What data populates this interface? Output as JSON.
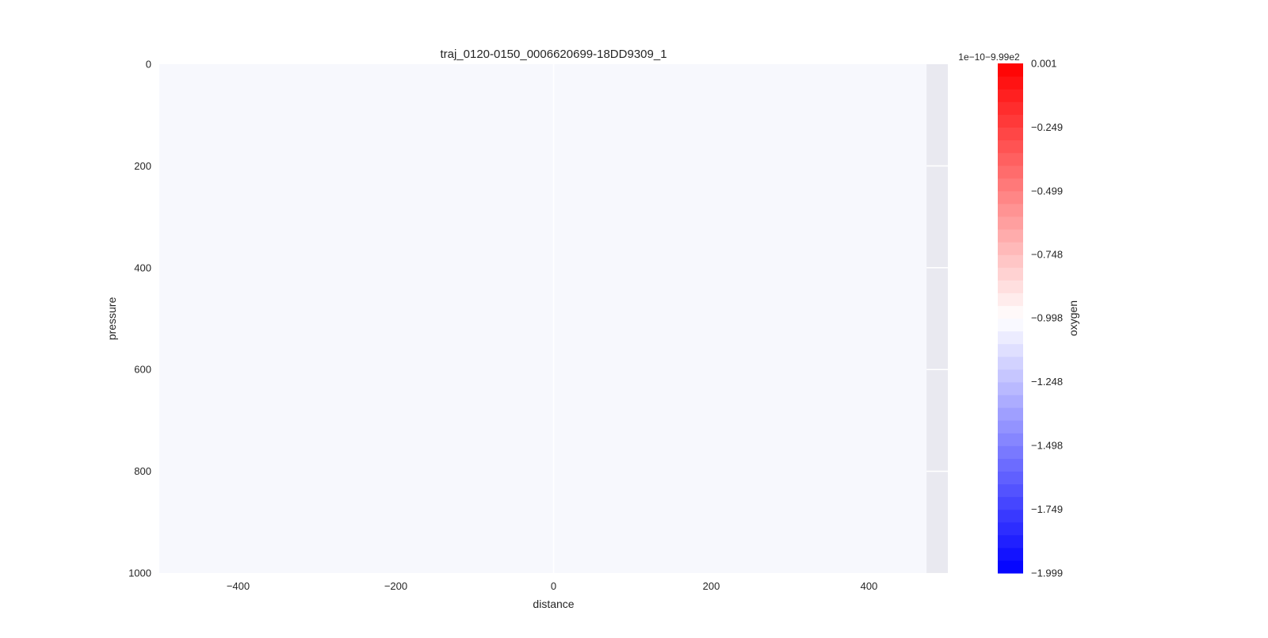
{
  "chart_data": {
    "type": "heatmap",
    "title": "traj_0120-0150_0006620699-18DD9309_1",
    "xlabel": "distance",
    "ylabel": "pressure",
    "xlim": [
      -500,
      500
    ],
    "ylim": [
      1000,
      0
    ],
    "y_inverted": true,
    "x_ticks": [
      -400,
      -200,
      0,
      200,
      400
    ],
    "x_tick_labels": [
      "−400",
      "−200",
      "0",
      "200",
      "400"
    ],
    "y_ticks": [
      0,
      200,
      400,
      600,
      800,
      1000
    ],
    "y_tick_labels": [
      "0",
      "200",
      "400",
      "600",
      "800",
      "1000"
    ],
    "data_extent_x": [
      -500,
      473
    ],
    "field_value": -0.998,
    "field_color": "#f7f8fd",
    "axes_background": "#e9e9f0",
    "grid": true,
    "colorbar": {
      "label": "oxygen",
      "offset_text": "1e−10−9.99e2",
      "vmin": -1.999,
      "vmax": 0.001,
      "n_levels": 40,
      "ticks": [
        0.001,
        -0.249,
        -0.499,
        -0.748,
        -0.998,
        -1.248,
        -1.498,
        -1.749,
        -1.999
      ],
      "tick_labels": [
        "0.001",
        "−0.249",
        "−0.499",
        "−0.748",
        "−0.998",
        "−1.248",
        "−1.498",
        "−1.749",
        "−1.999"
      ],
      "cmap_low": "#0000ff",
      "cmap_mid": "#ffffff",
      "cmap_high": "#ff0000"
    }
  }
}
